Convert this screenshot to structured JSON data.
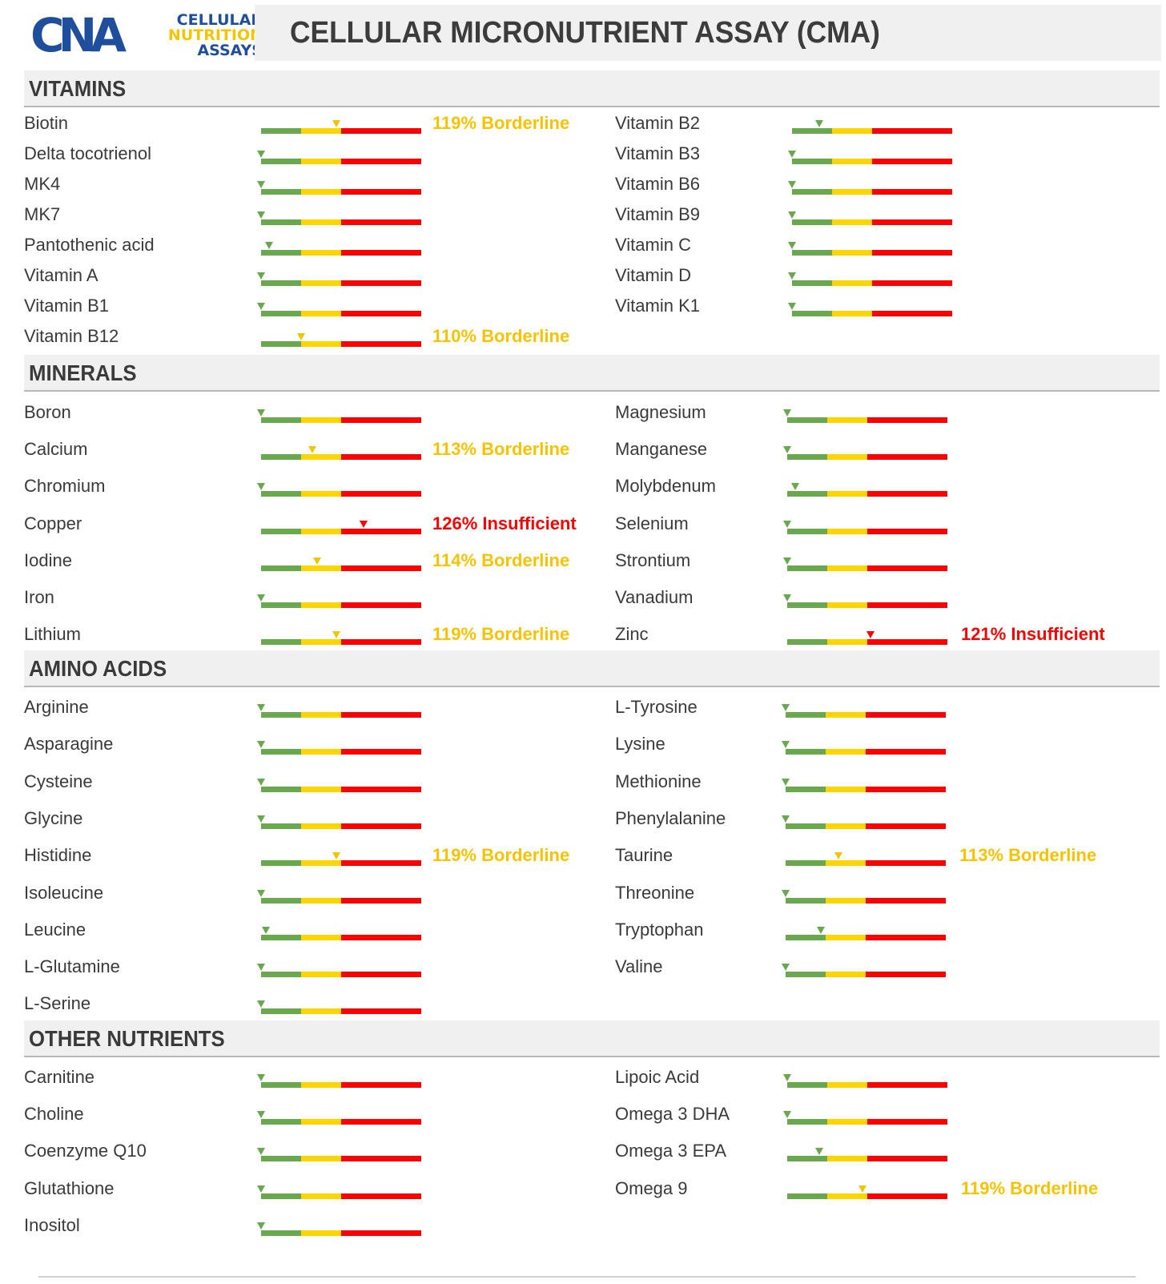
{
  "header": {
    "logo_mark": "CNA",
    "logo_line1": "CELLULAR",
    "logo_line2": "NUTRITION",
    "logo_line3": "ASSAYS",
    "title": "CELLULAR MICRONUTRIENT ASSAY (CMA)"
  },
  "colors": {
    "green": "#6aa84f",
    "yellow": "#ffd500",
    "red": "#ff0000",
    "borderline_text": "#f7c300",
    "insufficient_text": "#ff0000",
    "logo_blue": "#1f4e9c",
    "logo_yellow": "#f2c500"
  },
  "scale_note": "each bar: green zone, yellow zone, red zone; marker shows position",
  "sections": [
    {
      "title": "VITAMINS",
      "left": [
        {
          "name": "Biotin",
          "marker": 0.47,
          "status": "119% Borderline",
          "level": "borderline"
        },
        {
          "name": "Delta tocotrienol",
          "marker": 0.0
        },
        {
          "name": "MK4",
          "marker": 0.0
        },
        {
          "name": "MK7",
          "marker": 0.0
        },
        {
          "name": "Pantothenic acid",
          "marker": 0.05
        },
        {
          "name": "Vitamin A",
          "marker": 0.0
        },
        {
          "name": "Vitamin B1",
          "marker": 0.0
        },
        {
          "name": "Vitamin B12",
          "marker": 0.25,
          "status": "110% Borderline",
          "level": "borderline"
        }
      ],
      "right": [
        {
          "name": "Vitamin B2",
          "marker": 0.17
        },
        {
          "name": "Vitamin B3",
          "marker": 0.0
        },
        {
          "name": "Vitamin B6",
          "marker": 0.0
        },
        {
          "name": "Vitamin B9",
          "marker": 0.0
        },
        {
          "name": "Vitamin C",
          "marker": 0.0
        },
        {
          "name": "Vitamin D",
          "marker": 0.0
        },
        {
          "name": "Vitamin K1",
          "marker": 0.0
        }
      ]
    },
    {
      "title": "MINERALS",
      "left": [
        {
          "name": "Boron",
          "marker": 0.0
        },
        {
          "name": "Calcium",
          "marker": 0.32,
          "status": "113% Borderline",
          "level": "borderline"
        },
        {
          "name": "Chromium",
          "marker": 0.0
        },
        {
          "name": "Copper",
          "marker": 0.64,
          "status": "126% Insufficient",
          "level": "insufficient"
        },
        {
          "name": "Iodine",
          "marker": 0.35,
          "status": "114% Borderline",
          "level": "borderline"
        },
        {
          "name": "Iron",
          "marker": 0.0
        },
        {
          "name": "Lithium",
          "marker": 0.47,
          "status": "119% Borderline",
          "level": "borderline"
        }
      ],
      "right": [
        {
          "name": "Magnesium",
          "marker": 0.0
        },
        {
          "name": "Manganese",
          "marker": 0.0
        },
        {
          "name": "Molybdenum",
          "marker": 0.05
        },
        {
          "name": "Selenium",
          "marker": 0.0
        },
        {
          "name": "Strontium",
          "marker": 0.0
        },
        {
          "name": "Vanadium",
          "marker": 0.0
        },
        {
          "name": "Zinc",
          "marker": 0.52,
          "status": "121% Insufficient",
          "level": "insufficient"
        }
      ]
    },
    {
      "title": "AMINO ACIDS",
      "left": [
        {
          "name": "Arginine",
          "marker": 0.0
        },
        {
          "name": "Asparagine",
          "marker": 0.0
        },
        {
          "name": "Cysteine",
          "marker": 0.0
        },
        {
          "name": "Glycine",
          "marker": 0.0
        },
        {
          "name": "Histidine",
          "marker": 0.47,
          "status": "119% Borderline",
          "level": "borderline"
        },
        {
          "name": "Isoleucine",
          "marker": 0.0
        },
        {
          "name": "Leucine",
          "marker": 0.03
        },
        {
          "name": "L-Glutamine",
          "marker": 0.0
        },
        {
          "name": "L-Serine",
          "marker": 0.0
        }
      ],
      "right": [
        {
          "name": "L-Tyrosine",
          "marker": 0.0
        },
        {
          "name": "Lysine",
          "marker": 0.0
        },
        {
          "name": "Methionine",
          "marker": 0.0
        },
        {
          "name": "Phenylalanine",
          "marker": 0.0
        },
        {
          "name": "Taurine",
          "marker": 0.33,
          "status": "113% Borderline",
          "level": "borderline"
        },
        {
          "name": "Threonine",
          "marker": 0.0
        },
        {
          "name": "Tryptophan",
          "marker": 0.22
        },
        {
          "name": "Valine",
          "marker": 0.0
        }
      ]
    },
    {
      "title": "OTHER NUTRIENTS",
      "left": [
        {
          "name": "Carnitine",
          "marker": 0.0
        },
        {
          "name": "Choline",
          "marker": 0.0
        },
        {
          "name": "Coenzyme Q10",
          "marker": 0.0
        },
        {
          "name": "Glutathione",
          "marker": 0.0
        },
        {
          "name": "Inositol",
          "marker": 0.0
        }
      ],
      "right": [
        {
          "name": "Lipoic Acid",
          "marker": 0.0
        },
        {
          "name": "Omega 3 DHA",
          "marker": 0.0
        },
        {
          "name": "Omega 3 EPA",
          "marker": 0.2
        },
        {
          "name": "Omega 9",
          "marker": 0.47,
          "status": "119% Borderline",
          "level": "borderline"
        }
      ]
    }
  ]
}
